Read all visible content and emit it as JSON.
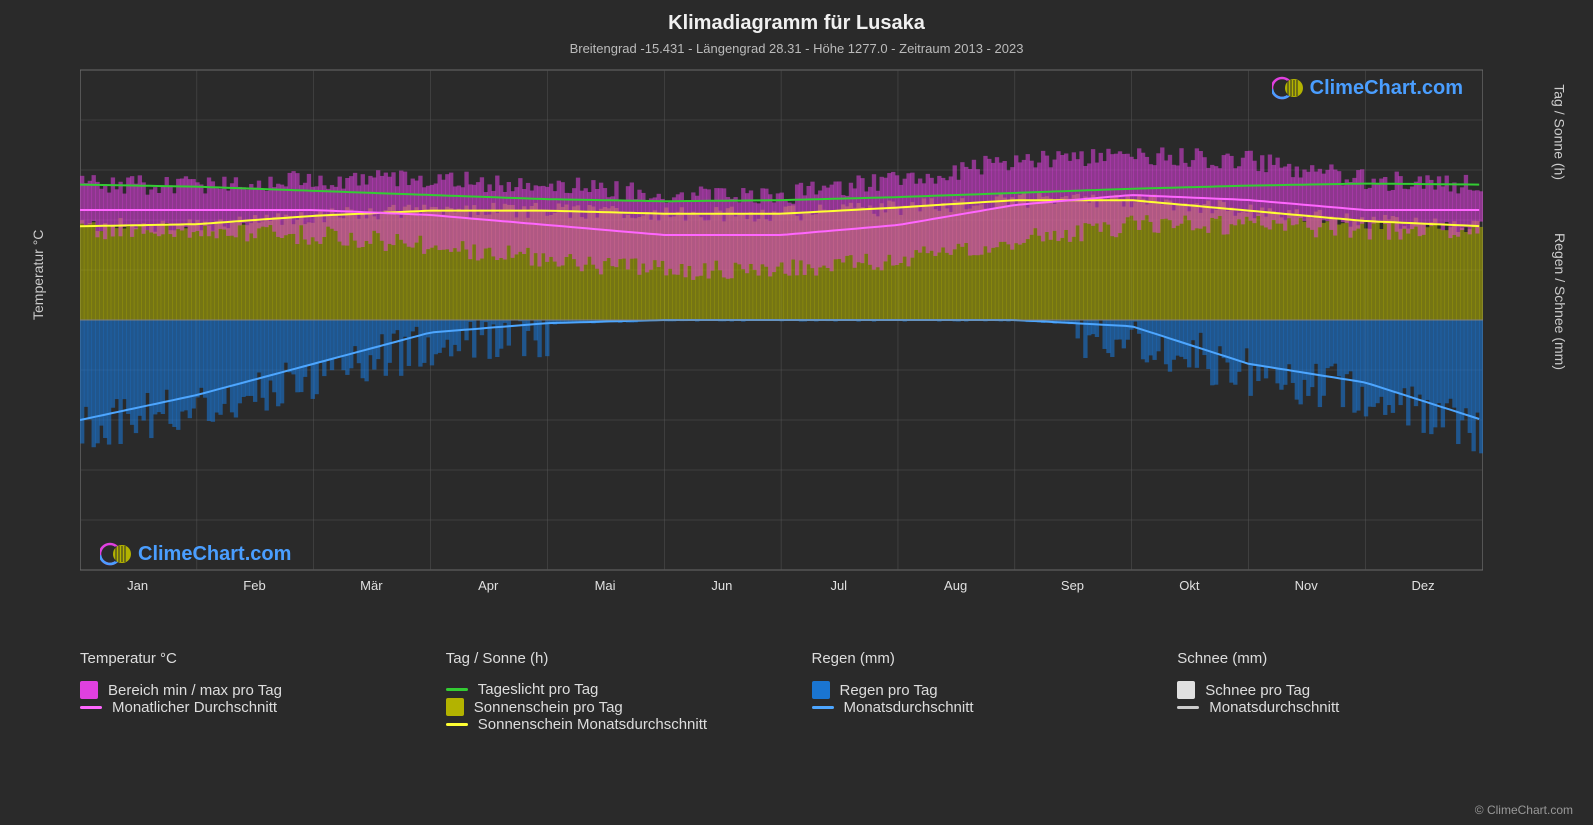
{
  "title": "Klimadiagramm für Lusaka",
  "subtitle": "Breitengrad -15.431 - Längengrad 28.31 - Höhe 1277.0 - Zeitraum 2013 - 2023",
  "colors": {
    "background": "#2a2a2a",
    "grid": "#555555",
    "border": "#808080",
    "text": "#e0e0e0",
    "temp_range": "#e040e0",
    "temp_avg": "#ff66ff",
    "daylight": "#33cc33",
    "sunshine_bar": "#b3b300",
    "sunshine_avg": "#ffff33",
    "rain_bar": "#1a75d1",
    "rain_avg": "#4da6ff",
    "snow_bar": "#e0e0e0",
    "snow_avg": "#cccccc",
    "watermark": "#4a9eff"
  },
  "chart": {
    "x_months": [
      "Jan",
      "Feb",
      "Mär",
      "Apr",
      "Mai",
      "Jun",
      "Jul",
      "Aug",
      "Sep",
      "Okt",
      "Nov",
      "Dez"
    ],
    "y_left": {
      "label": "Temperatur °C",
      "min": -50,
      "max": 50,
      "step": 10
    },
    "y_right_top": {
      "label": "Tag / Sonne (h)",
      "min": 0,
      "max": 24,
      "step": 6,
      "align_temp0": 0,
      "align_temp50": 24
    },
    "y_right_bot": {
      "label": "Regen / Schnee (mm)",
      "min": 0,
      "max": 40,
      "step": 10,
      "align_temp0": 0,
      "align_temp_minus50": 40
    },
    "temp_min": [
      18,
      18,
      17,
      15,
      12,
      10,
      10,
      12,
      16,
      19,
      19,
      18
    ],
    "temp_max": [
      27,
      27,
      28,
      28,
      27,
      25,
      25,
      28,
      32,
      33,
      32,
      28
    ],
    "temp_avg": [
      22,
      22,
      22,
      21,
      19,
      17,
      17,
      19,
      23,
      25,
      24,
      22
    ],
    "daylight_h": [
      13.0,
      12.8,
      12.4,
      12.0,
      11.6,
      11.4,
      11.5,
      11.8,
      12.2,
      12.6,
      12.9,
      13.1
    ],
    "sunshine_h": [
      9.0,
      9.2,
      10.0,
      10.5,
      10.5,
      10.2,
      10.2,
      10.8,
      11.5,
      11.5,
      10.5,
      9.5
    ],
    "rain_mm": [
      16,
      12,
      7,
      2,
      0.5,
      0,
      0,
      0,
      0,
      1,
      7,
      10
    ],
    "snow_mm": [
      0,
      0,
      0,
      0,
      0,
      0,
      0,
      0,
      0,
      0,
      0,
      0
    ],
    "temp_range_noise": 4,
    "sunshine_noise": 1.5,
    "rain_noise": 8
  },
  "legend": {
    "temp": {
      "header": "Temperatur °C",
      "items": [
        {
          "kind": "swatch",
          "color": "#e040e0",
          "label": "Bereich min / max pro Tag"
        },
        {
          "kind": "line",
          "color": "#ff66ff",
          "label": "Monatlicher Durchschnitt"
        }
      ]
    },
    "sun": {
      "header": "Tag / Sonne (h)",
      "items": [
        {
          "kind": "line",
          "color": "#33cc33",
          "label": "Tageslicht pro Tag"
        },
        {
          "kind": "swatch",
          "color": "#b3b300",
          "label": "Sonnenschein pro Tag"
        },
        {
          "kind": "line",
          "color": "#ffff33",
          "label": "Sonnenschein Monatsdurchschnitt"
        }
      ]
    },
    "rain": {
      "header": "Regen (mm)",
      "items": [
        {
          "kind": "swatch",
          "color": "#1a75d1",
          "label": "Regen pro Tag"
        },
        {
          "kind": "line",
          "color": "#4da6ff",
          "label": "Monatsdurchschnitt"
        }
      ]
    },
    "snow": {
      "header": "Schnee (mm)",
      "items": [
        {
          "kind": "swatch",
          "color": "#e0e0e0",
          "label": "Schnee pro Tag"
        },
        {
          "kind": "line",
          "color": "#cccccc",
          "label": "Monatsdurchschnitt"
        }
      ]
    }
  },
  "watermark_text": "ClimeChart.com",
  "copyright": "© ClimeChart.com"
}
